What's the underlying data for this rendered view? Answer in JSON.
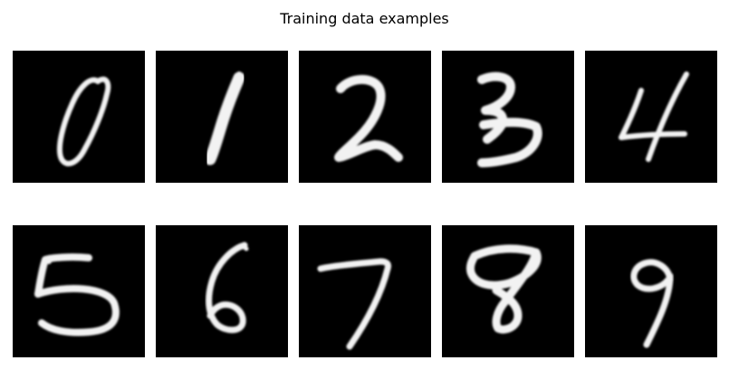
{
  "figure": {
    "title": "Training data examples",
    "stroke_color": "#f2f2f2",
    "background_color": "#000000",
    "images": [
      {
        "digit": "0",
        "icon": "digit-0-image"
      },
      {
        "digit": "1",
        "icon": "digit-1-image"
      },
      {
        "digit": "2",
        "icon": "digit-2-image"
      },
      {
        "digit": "3",
        "icon": "digit-3-image"
      },
      {
        "digit": "4",
        "icon": "digit-4-image"
      },
      {
        "digit": "5",
        "icon": "digit-5-image"
      },
      {
        "digit": "6",
        "icon": "digit-6-image"
      },
      {
        "digit": "7",
        "icon": "digit-7-image"
      },
      {
        "digit": "8",
        "icon": "digit-8-image"
      },
      {
        "digit": "9",
        "icon": "digit-9-image"
      }
    ]
  }
}
